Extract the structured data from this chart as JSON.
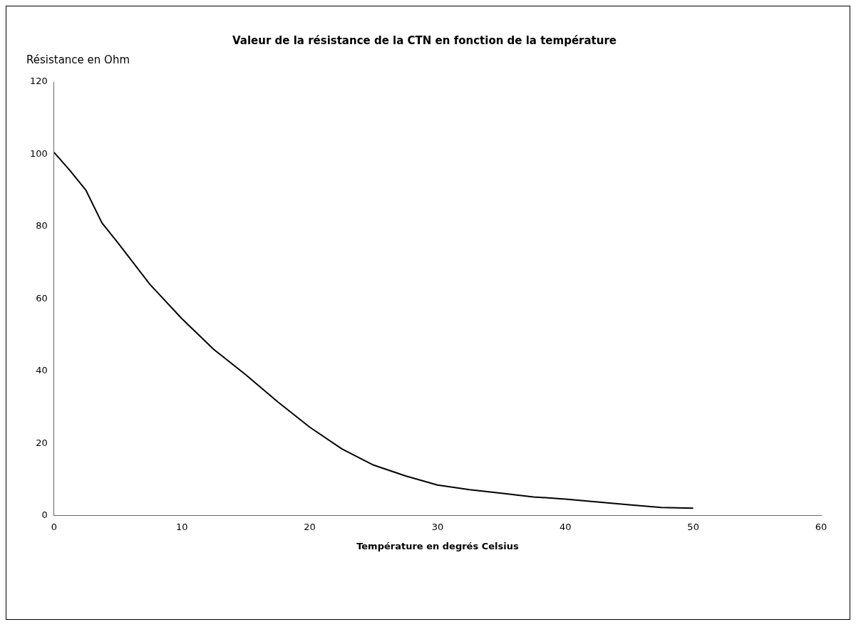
{
  "chart_data": {
    "type": "line",
    "title": "Valeur de la résistance de la CTN en fonction de la température",
    "xlabel": "Température en degrés Celsius",
    "ylabel": "Résistance en Ohm",
    "x": [
      0,
      1.25,
      2.5,
      3.75,
      5,
      7.5,
      10,
      12.5,
      15,
      17.5,
      20,
      22.5,
      25,
      27.5,
      30,
      32.5,
      35,
      37.5,
      40,
      42.5,
      45,
      47.5,
      50
    ],
    "series": [
      {
        "color": "#000000",
        "values": [
          100.5,
          95.5,
          90,
          81,
          75.5,
          64,
          54.5,
          46,
          39,
          31.5,
          24.5,
          18.5,
          14,
          11,
          8.5,
          7.2,
          6.2,
          5.2,
          4.6,
          3.8,
          3.0,
          2.3,
          2.1
        ]
      }
    ],
    "xlim": [
      0,
      60
    ],
    "xticks": [
      0,
      10,
      20,
      30,
      40,
      50,
      60
    ],
    "ylim": [
      0,
      120
    ],
    "yticks": [
      0,
      20,
      40,
      60,
      80,
      100,
      120
    ],
    "grid": false,
    "legend": false,
    "marker": "none",
    "line_style": "solid"
  }
}
